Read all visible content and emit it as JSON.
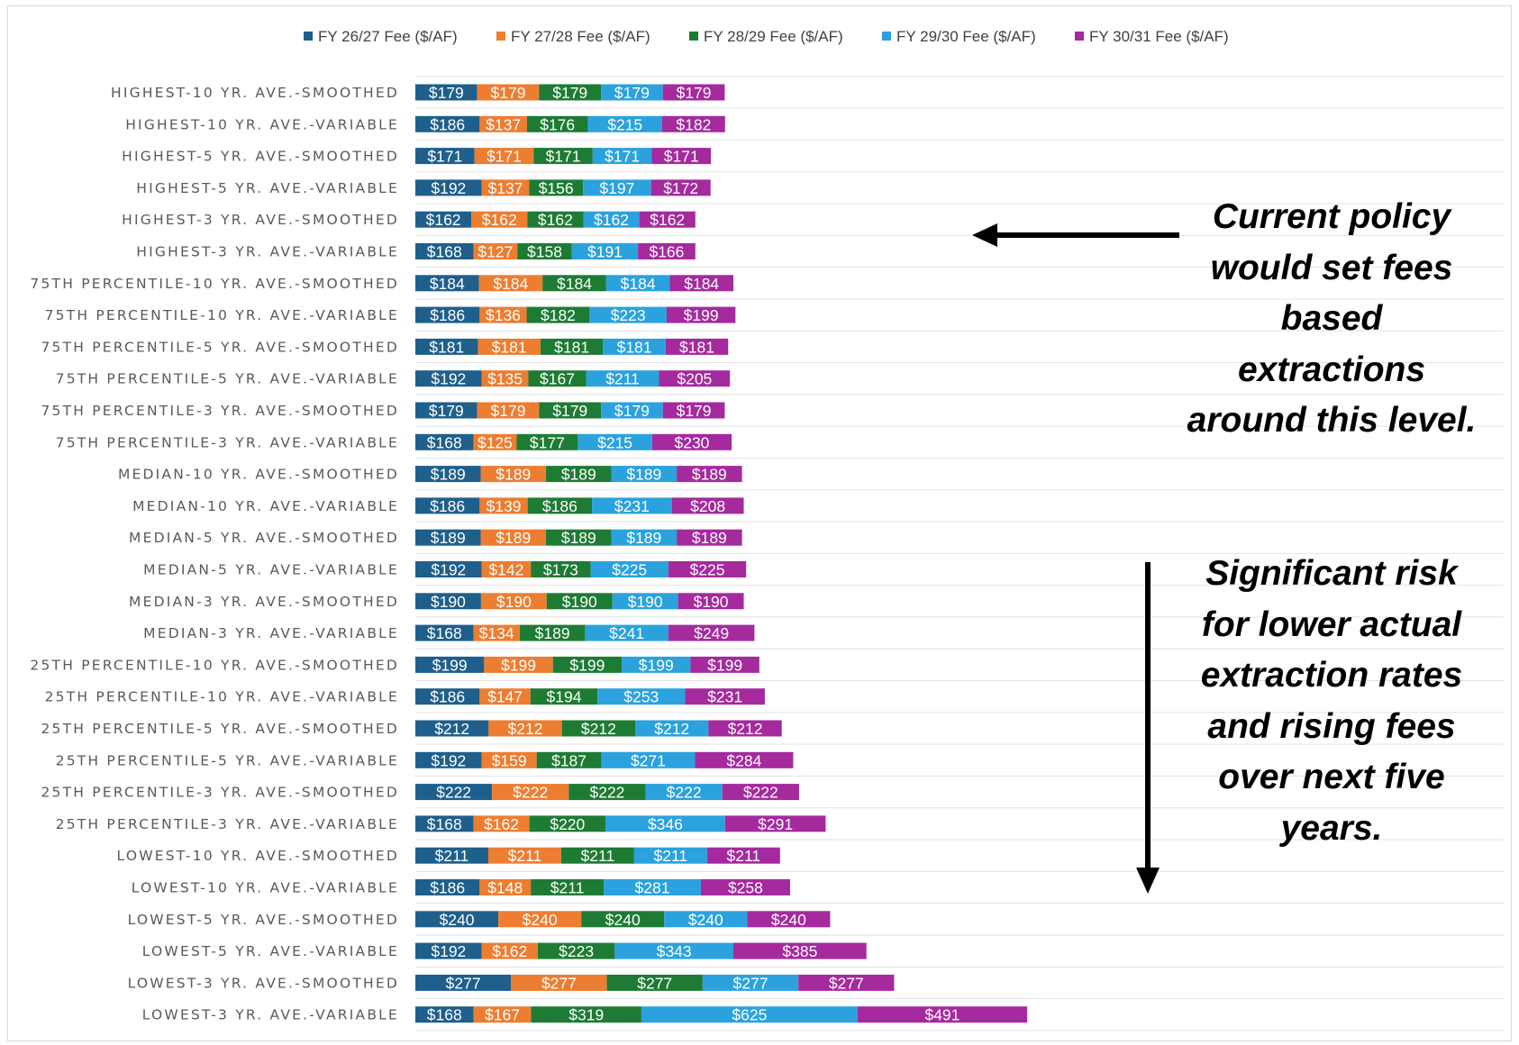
{
  "chart_data": {
    "type": "bar",
    "orientation": "horizontal",
    "stacked": true,
    "title": "",
    "xlabel": "",
    "ylabel": "",
    "grid": true,
    "legend_position": "top",
    "series": [
      {
        "name": "FY 26/27 Fee ($/AF)",
        "color": "#1f5f8b",
        "values": [
          179,
          186,
          171,
          192,
          162,
          168,
          184,
          186,
          181,
          192,
          179,
          168,
          189,
          186,
          189,
          192,
          190,
          168,
          199,
          186,
          212,
          192,
          222,
          168,
          211,
          186,
          240,
          192,
          277,
          168
        ],
        "labels": [
          "$179",
          "$186",
          "$171",
          "$192",
          "$162",
          "$168",
          "$184",
          "$186",
          "$181",
          "$192",
          "$179",
          "$168",
          "$189",
          "$186",
          "$189",
          "$192",
          "$190",
          "$168",
          "$199",
          "$186",
          "$212",
          "$192",
          "$222",
          "$168",
          "$211",
          "$186",
          "$240",
          "$192",
          "$277",
          "$168"
        ]
      },
      {
        "name": "FY 27/28 Fee ($/AF)",
        "color": "#ed7d31",
        "values": [
          179,
          137,
          171,
          137,
          162,
          127,
          184,
          136,
          181,
          135,
          179,
          125,
          189,
          139,
          189,
          142,
          190,
          134,
          199,
          147,
          212,
          159,
          222,
          162,
          211,
          148,
          240,
          162,
          277,
          167
        ],
        "labels": [
          "$179",
          "$137",
          "$171",
          "$137",
          "$162",
          "$127",
          "$184",
          "$136",
          "$181",
          "$135",
          "$179",
          "$125",
          "$189",
          "$139",
          "$189",
          "$142",
          "$190",
          "$134",
          "$199",
          "$147",
          "$212",
          "$159",
          "$222",
          "$162",
          "$211",
          "$148",
          "$240",
          "$162",
          "$277",
          "$167"
        ]
      },
      {
        "name": "FY 28/29 Fee ($/AF)",
        "color": "#1e7b34",
        "values": [
          179,
          176,
          171,
          156,
          162,
          158,
          184,
          182,
          181,
          167,
          179,
          177,
          189,
          186,
          189,
          173,
          190,
          189,
          199,
          194,
          212,
          187,
          222,
          220,
          211,
          211,
          240,
          223,
          277,
          319
        ],
        "labels": [
          "$179",
          "$176",
          "$171",
          "$156",
          "$162",
          "$158",
          "$184",
          "$182",
          "$181",
          "$167",
          "$179",
          "$177",
          "$189",
          "$186",
          "$189",
          "$173",
          "$190",
          "$189",
          "$199",
          "$194",
          "$212",
          "$187",
          "$222",
          "$220",
          "$211",
          "$211",
          "$240",
          "$223",
          "$277",
          "$319"
        ]
      },
      {
        "name": "FY 29/30 Fee ($/AF)",
        "color": "#2ba2de",
        "values": [
          179,
          215,
          171,
          197,
          162,
          191,
          184,
          223,
          181,
          211,
          179,
          215,
          189,
          231,
          189,
          225,
          190,
          241,
          199,
          253,
          212,
          271,
          222,
          346,
          211,
          281,
          240,
          343,
          277,
          625
        ],
        "labels": [
          "$179",
          "$215",
          "$171",
          "$197",
          "$162",
          "$191",
          "$184",
          "$223",
          "$181",
          "$211",
          "$179",
          "$215",
          "$189",
          "$231",
          "$189",
          "$225",
          "$190",
          "$241",
          "$199",
          "$253",
          "$212",
          "$271",
          "$222",
          "$346",
          "$211",
          "$281",
          "$240",
          "$343",
          "$277",
          "$625"
        ]
      },
      {
        "name": "FY 30/31 Fee ($/AF)",
        "color": "#a52a9e",
        "values": [
          179,
          182,
          171,
          172,
          162,
          166,
          184,
          199,
          181,
          205,
          179,
          230,
          189,
          208,
          189,
          225,
          190,
          249,
          199,
          231,
          212,
          284,
          222,
          291,
          211,
          258,
          240,
          385,
          277,
          491
        ],
        "labels": [
          "$179",
          "$182",
          "$171",
          "$172",
          "$162",
          "$166",
          "$184",
          "$199",
          "$181",
          "$205",
          "$179",
          "$230",
          "$189",
          "$208",
          "$189",
          "$225",
          "$190",
          "$249",
          "$199",
          "$231",
          "$212",
          "$284",
          "$222",
          "$291",
          "$211",
          "$258",
          "$240",
          "$385",
          "$277",
          "$491"
        ]
      }
    ],
    "categories": [
      "HIGHEST-10 YR. AVE.-SMOOTHED",
      "HIGHEST-10 YR. AVE.-VARIABLE",
      "HIGHEST-5 YR. AVE.-SMOOTHED",
      "HIGHEST-5 YR. AVE.-VARIABLE",
      "HIGHEST-3 YR. AVE.-SMOOTHED",
      "HIGHEST-3 YR. AVE.-VARIABLE",
      "75TH PERCENTILE-10 YR. AVE.-SMOOTHED",
      "75TH PERCENTILE-10 YR. AVE.-VARIABLE",
      "75TH PERCENTILE-5 YR. AVE.-SMOOTHED",
      "75TH PERCENTILE-5 YR. AVE.-VARIABLE",
      "75TH PERCENTILE-3 YR. AVE.-SMOOTHED",
      "75TH PERCENTILE-3 YR. AVE.-VARIABLE",
      "MEDIAN-10 YR. AVE.-SMOOTHED",
      "MEDIAN-10 YR. AVE.-VARIABLE",
      "MEDIAN-5 YR. AVE.-SMOOTHED",
      "MEDIAN-5 YR. AVE.-VARIABLE",
      "MEDIAN-3 YR. AVE.-SMOOTHED",
      "MEDIAN-3 YR. AVE.-VARIABLE",
      "25TH PERCENTILE-10 YR. AVE.-SMOOTHED",
      "25TH PERCENTILE-10 YR. AVE.-VARIABLE",
      "25TH PERCENTILE-5 YR. AVE.-SMOOTHED",
      "25TH PERCENTILE-5 YR. AVE.-VARIABLE",
      "25TH PERCENTILE-3 YR. AVE.-SMOOTHED",
      "25TH PERCENTILE-3 YR. AVE.-VARIABLE",
      "LOWEST-10 YR. AVE.-SMOOTHED",
      "LOWEST-10 YR. AVE.-VARIABLE",
      "LOWEST-5 YR. AVE.-SMOOTHED",
      "LOWEST-5 YR. AVE.-VARIABLE",
      "LOWEST-3 YR. AVE.-SMOOTHED",
      "LOWEST-3 YR. AVE.-VARIABLE"
    ],
    "annotations": [
      {
        "text": "Current policy would set fees based extractions around this level.",
        "arrow": "left",
        "points_to": "HIGHEST-3 YR. AVE.-VARIABLE"
      },
      {
        "text": "Significant risk for lower actual extraction rates and rising fees over next five years.",
        "arrow": "down"
      }
    ]
  },
  "annotations": {
    "current_policy": "Current policy would set fees based extractions around this level.",
    "significant_risk": "Significant risk for lower actual extraction rates and rising fees over next five years."
  }
}
